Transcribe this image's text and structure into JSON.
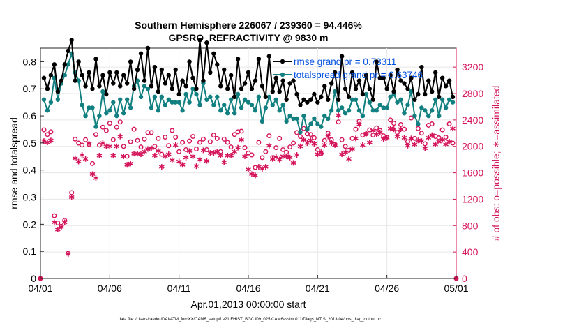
{
  "colors": {
    "rmse": "#000000",
    "spread": "#128080",
    "obs": "#d4145a",
    "legend_text": "#0050e0",
    "grid": "#e6e6e6",
    "axis": "#262626"
  },
  "chart_data": {
    "type": "line",
    "title": "Southern Hemisphere 226067 / 239360 = 94.446%",
    "subtitle": "GPSRO_REFRACTIVITY @ 9830 m",
    "xlabel": "Apr.01,2013 00:00:00 start",
    "ylabel": "rmse and totalspread",
    "y2label": "# of obs: o=possible; ∗=assimilated",
    "footnote": "data file: /Users/raeder/DAI/ATM_forcXX/CAM6_setup/f.e21.FHIST_BGC.f09_025.CAM6assim.011/Diags_NTrS_2013-04/obs_diag_output.nc",
    "xlim": [
      0,
      30
    ],
    "ylim": [
      0,
      0.85
    ],
    "y2lim": [
      0,
      3487
    ],
    "xticks": [
      0,
      5,
      10,
      15,
      20,
      25,
      30
    ],
    "xtick_labels": [
      "04/01",
      "04/06",
      "04/11",
      "04/16",
      "04/21",
      "04/26",
      "05/01"
    ],
    "yticks": [
      0,
      0.1,
      0.2,
      0.3,
      0.4,
      0.5,
      0.6,
      0.7,
      0.8
    ],
    "ytick_labels": [
      "0",
      "0.1",
      "0.2",
      "0.3",
      "0.4",
      "0.5",
      "0.6",
      "0.7",
      "0.8"
    ],
    "y2ticks": [
      0,
      400,
      800,
      1200,
      1600,
      2000,
      2400,
      2800,
      3200
    ],
    "y2tick_labels": [
      "0",
      "400",
      "800",
      "1200",
      "1600",
      "2000",
      "2400",
      "2800",
      "3200"
    ],
    "legend_position": "top-right",
    "series": [
      {
        "name": "rmse grand pr = 0.73311",
        "axis": "left",
        "marker": "filled-circle",
        "x": [
          0.25,
          0.5,
          0.75,
          1,
          1.25,
          1.5,
          1.75,
          2,
          2.25,
          2.5,
          2.75,
          3,
          3.25,
          3.5,
          3.75,
          4,
          4.25,
          4.5,
          4.75,
          5,
          5.25,
          5.5,
          5.75,
          6,
          6.25,
          6.5,
          6.75,
          7,
          7.25,
          7.5,
          7.75,
          8,
          8.25,
          8.5,
          8.75,
          9,
          9.25,
          9.5,
          9.75,
          10,
          10.25,
          10.5,
          10.75,
          11,
          11.25,
          11.5,
          11.75,
          12,
          12.25,
          12.5,
          12.75,
          13,
          13.25,
          13.5,
          13.75,
          14,
          14.25,
          14.5,
          14.75,
          15,
          15.25,
          15.5,
          15.75,
          16,
          16.25,
          16.5,
          16.75,
          17,
          17.25,
          17.5,
          17.75,
          18,
          18.25,
          18.5,
          18.75,
          19,
          19.25,
          19.5,
          19.75,
          20,
          20.25,
          20.5,
          20.75,
          21,
          21.25,
          21.5,
          21.75,
          22,
          22.25,
          22.5,
          22.75,
          23,
          23.25,
          23.5,
          23.75,
          24,
          24.25,
          24.5,
          24.75,
          25,
          25.25,
          25.5,
          25.75,
          26,
          26.25,
          26.5,
          26.75,
          27,
          27.25,
          27.5,
          27.75,
          28,
          28.25,
          28.5,
          28.75,
          29,
          29.25,
          29.5,
          29.75
        ],
        "values": [
          0.74,
          0.7,
          0.75,
          0.79,
          0.69,
          0.73,
          0.79,
          0.84,
          0.88,
          0.73,
          0.8,
          0.75,
          0.71,
          0.76,
          0.7,
          0.81,
          0.71,
          0.75,
          0.68,
          0.76,
          0.72,
          0.76,
          0.71,
          0.75,
          0.72,
          0.8,
          0.7,
          0.77,
          0.83,
          0.73,
          0.85,
          0.71,
          0.78,
          0.69,
          0.77,
          0.72,
          0.75,
          0.7,
          0.77,
          0.68,
          0.73,
          0.71,
          0.8,
          0.74,
          0.7,
          0.88,
          0.73,
          0.87,
          0.76,
          0.83,
          0.79,
          0.71,
          0.77,
          0.7,
          0.75,
          0.67,
          0.81,
          0.7,
          0.72,
          0.76,
          0.7,
          0.73,
          0.81,
          0.71,
          0.67,
          0.82,
          0.69,
          0.74,
          0.69,
          0.73,
          0.66,
          0.72,
          0.73,
          0.68,
          0.64,
          0.66,
          0.65,
          0.66,
          0.68,
          0.65,
          0.67,
          0.71,
          0.66,
          0.72,
          0.76,
          0.66,
          0.82,
          0.7,
          0.67,
          0.76,
          0.7,
          0.73,
          0.68,
          0.75,
          0.7,
          0.66,
          0.8,
          0.74,
          0.74,
          0.7,
          0.75,
          0.69,
          0.77,
          0.73,
          0.72,
          0.7,
          0.74,
          0.66,
          0.68,
          0.78,
          0.68,
          0.73,
          0.69,
          0.76,
          0.67,
          0.74,
          0.71,
          0.73,
          0.67
        ]
      },
      {
        "name": "totalspread grand pr = 0.63746",
        "axis": "left",
        "marker": "filled-circle",
        "x": [
          0.25,
          0.5,
          0.75,
          1,
          1.25,
          1.5,
          1.75,
          2,
          2.25,
          2.5,
          2.75,
          3,
          3.25,
          3.5,
          3.75,
          4,
          4.25,
          4.5,
          4.75,
          5,
          5.25,
          5.5,
          5.75,
          6,
          6.25,
          6.5,
          6.75,
          7,
          7.25,
          7.5,
          7.75,
          8,
          8.25,
          8.5,
          8.75,
          9,
          9.25,
          9.5,
          9.75,
          10,
          10.25,
          10.5,
          10.75,
          11,
          11.25,
          11.5,
          11.75,
          12,
          12.25,
          12.5,
          12.75,
          13,
          13.25,
          13.5,
          13.75,
          14,
          14.25,
          14.5,
          14.75,
          15,
          15.25,
          15.5,
          15.75,
          16,
          16.25,
          16.5,
          16.75,
          17,
          17.25,
          17.5,
          17.75,
          18,
          18.25,
          18.5,
          18.75,
          19,
          19.25,
          19.5,
          19.75,
          20,
          20.25,
          20.5,
          20.75,
          21,
          21.25,
          21.5,
          21.75,
          22,
          22.25,
          22.5,
          22.75,
          23,
          23.25,
          23.5,
          23.75,
          24,
          24.25,
          24.5,
          24.75,
          25,
          25.25,
          25.5,
          25.75,
          26,
          26.25,
          26.5,
          26.75,
          27,
          27.25,
          27.5,
          27.75,
          28,
          28.25,
          28.5,
          28.75,
          29,
          29.25,
          29.5,
          29.75
        ],
        "values": [
          0.66,
          0.62,
          0.65,
          0.74,
          0.66,
          0.72,
          0.75,
          0.79,
          0.83,
          0.76,
          0.73,
          0.64,
          0.6,
          0.63,
          0.63,
          0.56,
          0.6,
          0.69,
          0.61,
          0.62,
          0.65,
          0.6,
          0.66,
          0.61,
          0.66,
          0.63,
          0.71,
          0.73,
          0.67,
          0.71,
          0.7,
          0.63,
          0.67,
          0.62,
          0.67,
          0.64,
          0.66,
          0.65,
          0.65,
          0.65,
          0.62,
          0.68,
          0.65,
          0.7,
          0.68,
          0.64,
          0.72,
          0.66,
          0.67,
          0.64,
          0.67,
          0.62,
          0.64,
          0.61,
          0.66,
          0.61,
          0.68,
          0.63,
          0.66,
          0.65,
          0.64,
          0.62,
          0.67,
          0.58,
          0.63,
          0.67,
          0.64,
          0.66,
          0.62,
          0.64,
          0.58,
          0.6,
          0.59,
          0.59,
          0.54,
          0.6,
          0.55,
          0.57,
          0.59,
          0.57,
          0.56,
          0.6,
          0.59,
          0.62,
          0.69,
          0.62,
          0.63,
          0.61,
          0.62,
          0.66,
          0.66,
          0.62,
          0.6,
          0.68,
          0.65,
          0.62,
          0.62,
          0.64,
          0.63,
          0.63,
          0.67,
          0.68,
          0.65,
          0.66,
          0.61,
          0.64,
          0.69,
          0.6,
          0.57,
          0.63,
          0.62,
          0.6,
          0.62,
          0.66,
          0.6,
          0.66,
          0.63,
          0.66,
          0.65
        ]
      },
      {
        "name": "obs possible",
        "axis": "right",
        "marker": "open-circle",
        "x": [
          0.25,
          0.5,
          0.75,
          1,
          1.25,
          1.5,
          1.75,
          2,
          2.25,
          2.5,
          2.75,
          3,
          3.25,
          3.5,
          3.75,
          4,
          4.25,
          4.5,
          4.75,
          5,
          5.25,
          5.5,
          5.75,
          6,
          6.25,
          6.5,
          6.75,
          7,
          7.25,
          7.5,
          7.75,
          8,
          8.25,
          8.5,
          8.75,
          9,
          9.25,
          9.5,
          9.75,
          10,
          10.25,
          10.5,
          10.75,
          11,
          11.25,
          11.5,
          11.75,
          12,
          12.25,
          12.5,
          12.75,
          13,
          13.25,
          13.5,
          13.75,
          14,
          14.25,
          14.5,
          14.75,
          15,
          15.25,
          15.5,
          15.75,
          16,
          16.25,
          16.5,
          16.75,
          17,
          17.25,
          17.5,
          17.75,
          18,
          18.25,
          18.5,
          18.75,
          19,
          19.25,
          19.5,
          19.75,
          20,
          20.25,
          20.5,
          20.75,
          21,
          21.25,
          21.5,
          21.75,
          22,
          22.25,
          22.5,
          22.75,
          23,
          23.25,
          23.5,
          23.75,
          24,
          24.25,
          24.5,
          24.75,
          25,
          25.25,
          25.5,
          25.75,
          26,
          26.25,
          26.5,
          26.75,
          27,
          27.25,
          27.5,
          27.75,
          28,
          28.25,
          28.5,
          28.75,
          29,
          29.25,
          29.5,
          29.75
        ],
        "values": [
          2250,
          2180,
          2220,
          950,
          840,
          790,
          880,
          380,
          1300,
          2110,
          2050,
          2020,
          2100,
          2030,
          1740,
          2180,
          2020,
          2290,
          2240,
          2350,
          2100,
          2290,
          2370,
          2000,
          1850,
          2070,
          2260,
          2090,
          1990,
          2110,
          2210,
          2210,
          2000,
          2120,
          1880,
          2140,
          2010,
          2240,
          2140,
          1920,
          2060,
          1950,
          2080,
          2150,
          1960,
          2060,
          2110,
          1950,
          2070,
          2170,
          2120,
          1920,
          2110,
          2060,
          1990,
          2180,
          2220,
          2230,
          1980,
          1900,
          1870,
          1680,
          2060,
          1830,
          1920,
          2160,
          1830,
          1980,
          2120,
          1950,
          1910,
          1990,
          2050,
          2210,
          2150,
          2270,
          2190,
          2180,
          2130,
          1950,
          1890,
          2090,
          2200,
          2100,
          2030,
          2370,
          2100,
          2000,
          1940,
          2120,
          2260,
          2380,
          2170,
          2190,
          2250,
          2170,
          2280,
          2240,
          2160,
          2140,
          2400,
          2350,
          2210,
          2330,
          2260,
          2070,
          2430,
          2120,
          2270,
          2200,
          2040,
          2320,
          2340,
          2150,
          2130,
          2250,
          2140,
          2340,
          2050
        ]
      },
      {
        "name": "obs assimilated",
        "axis": "right",
        "marker": "asterisk",
        "x": [
          0.25,
          0.5,
          0.75,
          1,
          1.25,
          1.5,
          1.75,
          2,
          2.25,
          2.5,
          2.75,
          3,
          3.25,
          3.5,
          3.75,
          4,
          4.25,
          4.5,
          4.75,
          5,
          5.25,
          5.5,
          5.75,
          6,
          6.25,
          6.5,
          6.75,
          7,
          7.25,
          7.5,
          7.75,
          8,
          8.25,
          8.5,
          8.75,
          9,
          9.25,
          9.5,
          9.75,
          10,
          10.25,
          10.5,
          10.75,
          11,
          11.25,
          11.5,
          11.75,
          12,
          12.25,
          12.5,
          12.75,
          13,
          13.25,
          13.5,
          13.75,
          14,
          14.25,
          14.5,
          14.75,
          15,
          15.25,
          15.5,
          15.75,
          16,
          16.25,
          16.5,
          16.75,
          17,
          17.25,
          17.5,
          17.75,
          18,
          18.25,
          18.5,
          18.75,
          19,
          19.25,
          19.5,
          19.75,
          20,
          20.25,
          20.5,
          20.75,
          21,
          21.25,
          21.5,
          21.75,
          22,
          22.25,
          22.5,
          22.75,
          23,
          23.25,
          23.5,
          23.75,
          24,
          24.25,
          24.5,
          24.75,
          25,
          25.25,
          25.5,
          25.75,
          26,
          26.25,
          26.5,
          26.75,
          27,
          27.25,
          27.5,
          27.75,
          28,
          28.25,
          28.5,
          28.75,
          29,
          29.25,
          29.5,
          29.75
        ],
        "values": [
          2080,
          2060,
          2090,
          850,
          740,
          780,
          850,
          370,
          1230,
          1820,
          1770,
          1870,
          1810,
          2040,
          1580,
          1520,
          1860,
          2050,
          2000,
          2000,
          1860,
          2000,
          2150,
          1850,
          1720,
          1740,
          1890,
          1890,
          1880,
          1920,
          1960,
          1970,
          1860,
          1930,
          1690,
          1850,
          1880,
          1790,
          2020,
          1770,
          1720,
          1830,
          1930,
          1850,
          1700,
          1800,
          1940,
          1780,
          1900,
          1900,
          1920,
          1860,
          1760,
          1860,
          1860,
          1920,
          1980,
          2100,
          1850,
          1650,
          1580,
          1560,
          1690,
          1660,
          1690,
          2010,
          1810,
          1840,
          1800,
          1850,
          1850,
          1830,
          1750,
          1870,
          2000,
          2100,
          2050,
          2090,
          2040,
          1880,
          1910,
          2020,
          2150,
          2050,
          2020,
          2470,
          1880,
          1910,
          1810,
          1960,
          2120,
          2330,
          2020,
          2190,
          2060,
          2240,
          2180,
          2210,
          2110,
          2130,
          2270,
          2260,
          2150,
          2260,
          2130,
          2010,
          2120,
          2030,
          2090,
          2080,
          1970,
          2130,
          2170,
          2030,
          2070,
          2100,
          2030,
          2070,
          2270
        ]
      }
    ]
  }
}
